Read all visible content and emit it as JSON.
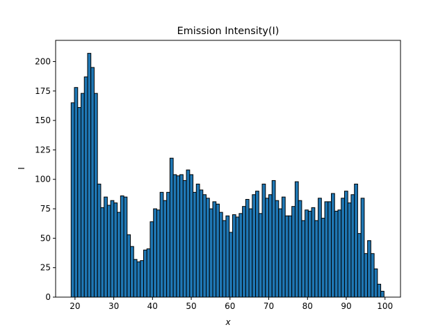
{
  "chart_data": {
    "type": "histogram",
    "title": "Emission Intensity(I)",
    "x_label": "x",
    "y_label": "I",
    "bins": [
      19,
      19.85,
      20.7,
      21.55,
      22.4,
      23.25,
      24.1,
      24.95,
      25.8,
      26.65,
      27.5,
      28.35,
      29.2,
      30.05,
      30.9,
      31.75,
      32.6,
      33.45,
      34.3,
      35.15,
      36,
      36.85,
      37.7,
      38.55,
      39.4,
      40.25,
      41.1,
      41.95,
      42.8,
      43.65,
      44.5,
      45.35,
      46.2,
      47.05,
      47.9,
      48.75,
      49.6,
      50.45,
      51.3,
      52.15,
      53,
      53.85,
      54.7,
      55.55,
      56.4,
      57.25,
      58.1,
      58.95,
      59.8,
      60.65,
      61.5,
      62.35,
      63.2,
      64.05,
      64.9,
      65.75,
      66.6,
      67.45,
      68.3,
      69.15,
      70,
      70.85,
      71.7,
      72.55,
      73.4,
      74.25,
      75.1,
      75.95,
      76.8,
      77.65,
      78.5,
      79.35,
      80.2,
      81.05,
      81.9,
      82.75,
      83.6,
      84.45,
      85.3,
      86.15,
      87,
      87.85,
      88.7,
      89.55,
      90.4,
      91.25,
      92.1,
      92.95,
      93.8,
      94.65,
      95.5,
      96.35,
      97.2,
      98.05,
      98.9,
      99.75
    ],
    "values": [
      165,
      178,
      161,
      173,
      187,
      207,
      195,
      173,
      96,
      76,
      85,
      78,
      82,
      80,
      72,
      86,
      85,
      53,
      43,
      32,
      30,
      31,
      40,
      41,
      64,
      75,
      74,
      89,
      82,
      89,
      118,
      104,
      103,
      104,
      99,
      108,
      104,
      89,
      96,
      91,
      87,
      84,
      75,
      81,
      79,
      72,
      65,
      69,
      55,
      70,
      68,
      71,
      77,
      83,
      75,
      87,
      90,
      71,
      96,
      84,
      87,
      99,
      82,
      75,
      85,
      69,
      69,
      77,
      98,
      82,
      65,
      74,
      73,
      76,
      65,
      84,
      67,
      81,
      81,
      88,
      73,
      74,
      84,
      90,
      80,
      87,
      96,
      54,
      84,
      37,
      48,
      37,
      24,
      11,
      5
    ],
    "color": "#1f77b4",
    "edgecolor": "#000000",
    "xlim": [
      15,
      104
    ],
    "ylim": [
      0,
      218
    ],
    "xticks": [
      20,
      30,
      40,
      50,
      60,
      70,
      80,
      90,
      100
    ],
    "yticks": [
      0,
      25,
      50,
      75,
      100,
      125,
      150,
      175,
      200
    ]
  }
}
